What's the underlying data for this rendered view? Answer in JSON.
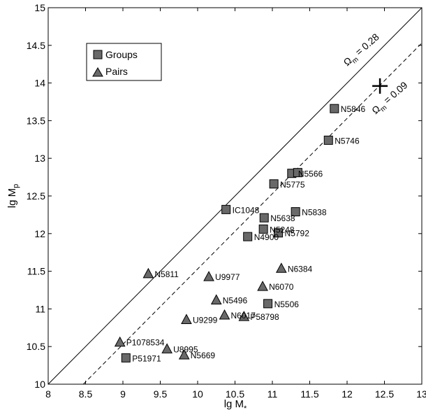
{
  "chart_data": {
    "type": "scatter",
    "xlabel": "lg M",
    "xlabel_sub": "*",
    "ylabel": "lg M",
    "ylabel_sub": "p",
    "xlim": [
      8,
      13
    ],
    "ylim": [
      10,
      15
    ],
    "xticks": [
      8,
      8.5,
      9,
      9.5,
      10,
      10.5,
      11,
      11.5,
      12,
      12.5,
      13
    ],
    "xtick_labels": [
      "8",
      "8.5",
      "9",
      "9.5",
      "10",
      "10.5",
      "11",
      "11.5",
      "12",
      "12.5",
      "13"
    ],
    "yticks": [
      10,
      10.5,
      11,
      11.5,
      12,
      12.5,
      13,
      13.5,
      14,
      14.5,
      15
    ],
    "ytick_labels": [
      "10",
      "10.5",
      "11",
      "11.5",
      "12",
      "12.5",
      "13",
      "13.5",
      "14",
      "14.5",
      "15"
    ],
    "grid": false,
    "legend_position": "top-left",
    "series": [
      {
        "name": "Groups",
        "marker": "square",
        "color": "#696969",
        "points": [
          {
            "x": 11.83,
            "y": 13.66,
            "label": "N5846"
          },
          {
            "x": 11.75,
            "y": 13.24,
            "label": "N5746"
          },
          {
            "x": 11.26,
            "y": 12.8,
            "label": "N5566"
          },
          {
            "x": 11.34,
            "y": 12.81,
            "label": ""
          },
          {
            "x": 11.02,
            "y": 12.66,
            "label": "N5775"
          },
          {
            "x": 10.38,
            "y": 12.32,
            "label": "IC1048"
          },
          {
            "x": 11.31,
            "y": 12.29,
            "label": "N5838"
          },
          {
            "x": 10.89,
            "y": 12.21,
            "label": "N5638"
          },
          {
            "x": 10.88,
            "y": 12.06,
            "label": "N5248"
          },
          {
            "x": 11.08,
            "y": 12.01,
            "label": "N5792"
          },
          {
            "x": 10.67,
            "y": 11.96,
            "label": "N4900"
          },
          {
            "x": 10.94,
            "y": 11.07,
            "label": "N5506"
          },
          {
            "x": 9.04,
            "y": 10.35,
            "label": "P51971"
          }
        ]
      },
      {
        "name": "Pairs",
        "marker": "triangle",
        "color": "#696969",
        "points": [
          {
            "x": 11.12,
            "y": 11.54,
            "label": "N6384"
          },
          {
            "x": 9.34,
            "y": 11.47,
            "label": "N5811"
          },
          {
            "x": 10.15,
            "y": 11.43,
            "label": "U9977"
          },
          {
            "x": 10.87,
            "y": 11.3,
            "label": "N6070"
          },
          {
            "x": 10.25,
            "y": 11.12,
            "label": "N5496"
          },
          {
            "x": 10.36,
            "y": 10.92,
            "label": "N6017"
          },
          {
            "x": 10.62,
            "y": 10.9,
            "label": "P58798"
          },
          {
            "x": 9.85,
            "y": 10.86,
            "label": "U9299"
          },
          {
            "x": 8.96,
            "y": 10.56,
            "label": "P1078534"
          },
          {
            "x": 9.59,
            "y": 10.47,
            "label": "U8995"
          },
          {
            "x": 9.82,
            "y": 10.39,
            "label": "N5669"
          }
        ]
      }
    ],
    "lines": [
      {
        "label": "Ω",
        "label_sub": "m",
        "label_rest": " = 0.28",
        "style": "solid",
        "x": [
          8,
          13
        ],
        "y": [
          10,
          15
        ]
      },
      {
        "label": "Ω",
        "label_sub": "m",
        "label_rest": " = 0.09",
        "style": "dashed",
        "x": [
          8.47,
          13
        ],
        "y": [
          10,
          14.53
        ]
      }
    ],
    "cross_marker": {
      "x": 12.44,
      "y": 13.96
    }
  }
}
